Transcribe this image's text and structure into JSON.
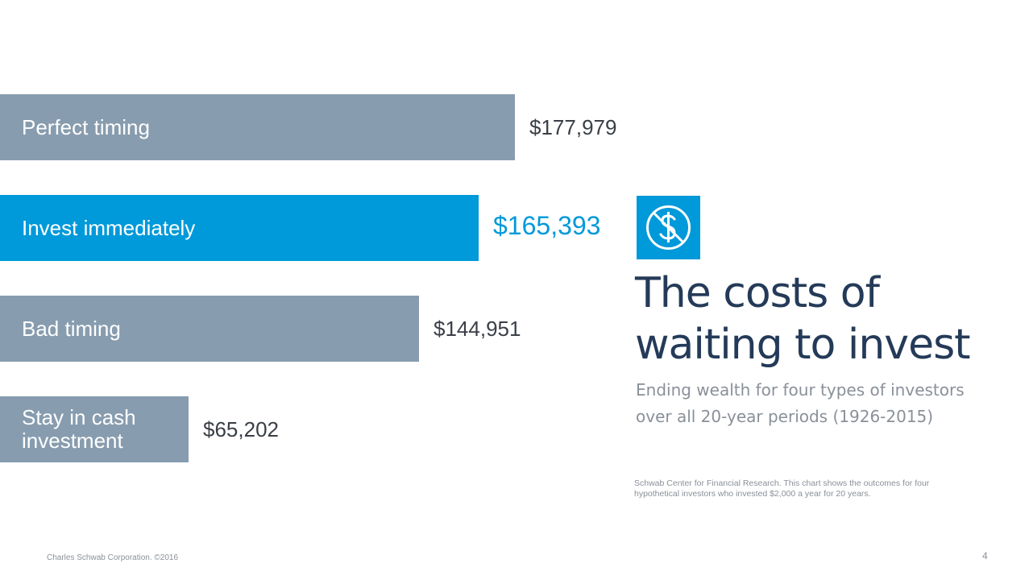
{
  "slide": {
    "title": "The costs of\nwaiting to invest",
    "subtitle": "Ending wealth for four types of investors over all 20-year periods (1926-2015)",
    "source": "Schwab Center for Financial Research. This chart shows the outcomes for four hypothetical investors who invested $2,000 a year for 20 years.",
    "footer": "Charles Schwab Corporation. ©2016",
    "page_number": "4",
    "icon": "dollar-sign-no-icon"
  },
  "colors": {
    "bar_default": "#879cae",
    "bar_highlight": "#0099d9",
    "title": "#243a58",
    "muted_text": "#8a9099"
  },
  "chart_data": {
    "type": "bar",
    "orientation": "horizontal",
    "categories": [
      "Perfect timing",
      "Invest immediately",
      "Bad timing",
      "Stay in cash\ninvestment"
    ],
    "values": [
      177979,
      165393,
      144951,
      65202
    ],
    "value_labels": [
      "$177,979",
      "$165,393",
      "$144,951",
      "$65,202"
    ],
    "highlight_index": 1,
    "title": "",
    "xlabel": "",
    "ylabel": "",
    "grid": false
  }
}
